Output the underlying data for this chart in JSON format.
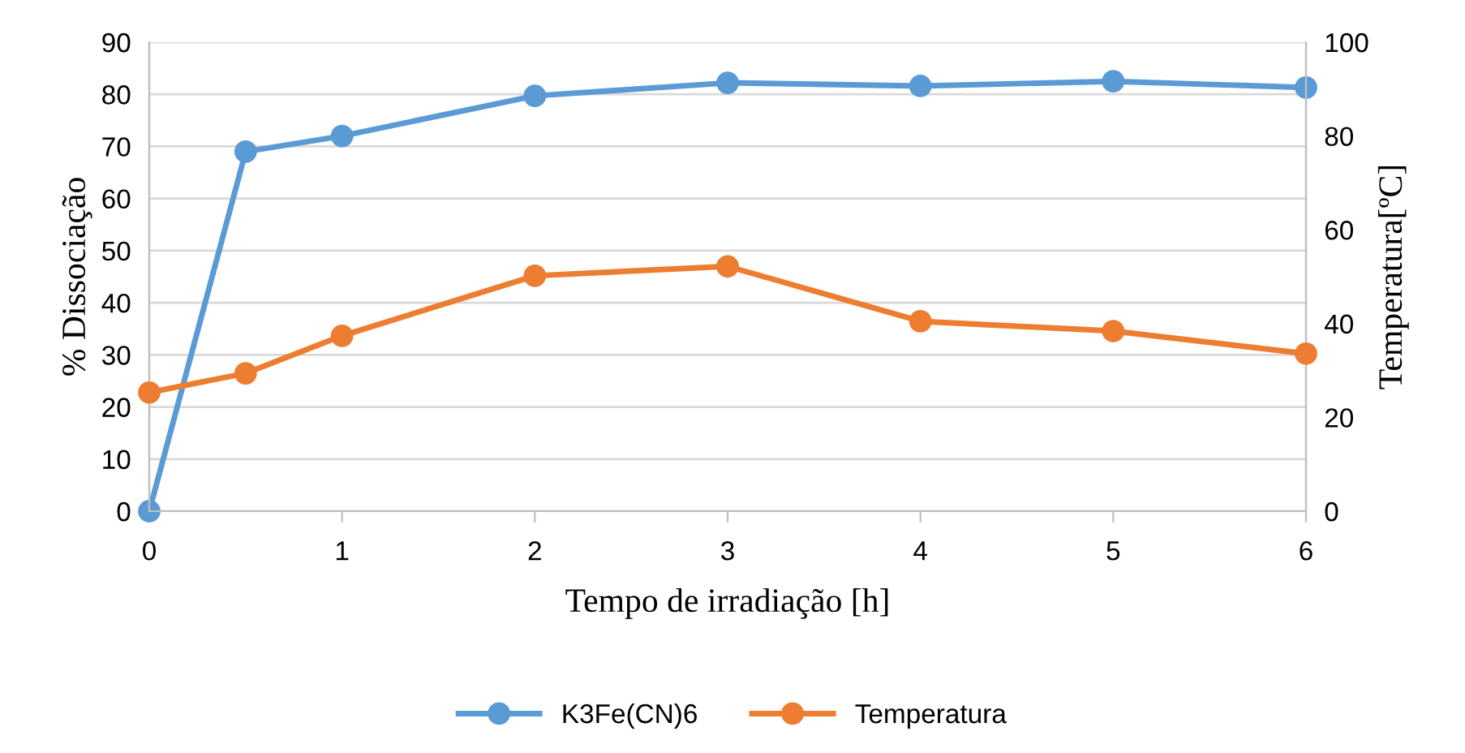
{
  "chart_data": {
    "type": "line",
    "xlabel": "Tempo de irradiação [h]",
    "ylabel": "% Dissociação",
    "y2label": "Temperatura[ºC]",
    "x": [
      0,
      0.5,
      1,
      2,
      3,
      4,
      5,
      6
    ],
    "series": [
      {
        "name": "K3Fe(CN)6",
        "color": "#5b9bd5",
        "values": [
          0,
          69,
          72,
          79.7,
          82.2,
          81.6,
          82.5,
          81.3
        ]
      },
      {
        "name": "Temperatura",
        "color": "#ed7d31",
        "axis": "y2",
        "values": [
          25.3,
          29.4,
          37.4,
          50.2,
          52.2,
          40.5,
          38.4,
          33.6
        ]
      }
    ],
    "xlim": [
      0,
      6
    ],
    "xticks": [
      0,
      1,
      2,
      3,
      4,
      5,
      6
    ],
    "ylim": [
      0,
      90
    ],
    "yticks": [
      0,
      10,
      20,
      30,
      40,
      50,
      60,
      70,
      80,
      90
    ],
    "y2lim": [
      0,
      100
    ],
    "y2ticks": [
      0,
      20,
      40,
      60,
      80,
      100
    ],
    "grid": "y",
    "legend": "bottom",
    "marker": "circle",
    "line_style": "solid"
  }
}
